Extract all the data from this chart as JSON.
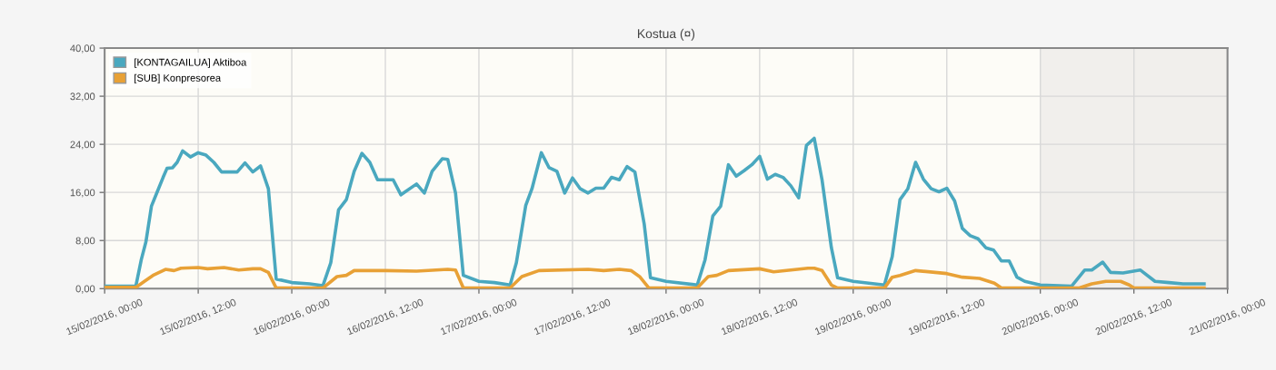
{
  "chart_data": {
    "type": "line",
    "title": "Kostua (¤)",
    "xlim": [
      "2016-02-15T00:00",
      "2016-02-21T00:00"
    ],
    "xticks": [
      {
        "value": "2016-02-15T00:00",
        "label": "15/02/2016, 00:00"
      },
      {
        "value": "2016-02-15T12:00",
        "label": "15/02/2016, 12:00"
      },
      {
        "value": "2016-02-16T00:00",
        "label": "16/02/2016, 00:00"
      },
      {
        "value": "2016-02-16T12:00",
        "label": "16/02/2016, 12:00"
      },
      {
        "value": "2016-02-17T00:00",
        "label": "17/02/2016, 00:00"
      },
      {
        "value": "2016-02-17T12:00",
        "label": "17/02/2016, 12:00"
      },
      {
        "value": "2016-02-18T00:00",
        "label": "18/02/2016, 00:00"
      },
      {
        "value": "2016-02-18T12:00",
        "label": "18/02/2016, 12:00"
      },
      {
        "value": "2016-02-19T00:00",
        "label": "19/02/2016, 00:00"
      },
      {
        "value": "2016-02-19T12:00",
        "label": "19/02/2016, 12:00"
      },
      {
        "value": "2016-02-20T00:00",
        "label": "20/02/2016, 00:00"
      },
      {
        "value": "2016-02-20T12:00",
        "label": "20/02/2016, 12:00"
      },
      {
        "value": "2016-02-21T00:00",
        "label": "21/02/2016, 00:00"
      }
    ],
    "ylim": [
      0,
      40
    ],
    "yticks": [
      {
        "value": 0,
        "label": "0,00"
      },
      {
        "value": 8,
        "label": "8,00"
      },
      {
        "value": 16,
        "label": "16,00"
      },
      {
        "value": 24,
        "label": "24,00"
      },
      {
        "value": 32,
        "label": "32,00"
      },
      {
        "value": 40,
        "label": "40,00"
      }
    ],
    "grid": true,
    "legend": "top left",
    "line_style": "solid",
    "bands": [
      {
        "axis": "x",
        "from": "2016-02-20T00:00",
        "to": "2016-02-21T00:00",
        "color": "#f1efec"
      }
    ],
    "series": [
      {
        "name": "[KONTAGAILUA] Aktiboa",
        "color": "#4aa8bf",
        "x": [
          "2016-02-15T00:00",
          "2016-02-15T04:00",
          "2016-02-15T04:42",
          "2016-02-15T05:18",
          "2016-02-15T06:00",
          "2016-02-15T06:30",
          "2016-02-15T07:30",
          "2016-02-15T08:00",
          "2016-02-15T08:42",
          "2016-02-15T09:18",
          "2016-02-15T10:00",
          "2016-02-15T11:00",
          "2016-02-15T12:00",
          "2016-02-15T13:00",
          "2016-02-15T14:00",
          "2016-02-15T15:00",
          "2016-02-15T17:00",
          "2016-02-15T18:00",
          "2016-02-15T19:00",
          "2016-02-15T20:00",
          "2016-02-15T21:00",
          "2016-02-15T22:00",
          "2016-02-16T00:00",
          "2016-02-16T02:18",
          "2016-02-16T04:00",
          "2016-02-16T05:00",
          "2016-02-16T06:00",
          "2016-02-16T07:00",
          "2016-02-16T08:00",
          "2016-02-16T09:00",
          "2016-02-16T10:00",
          "2016-02-16T11:00",
          "2016-02-16T13:00",
          "2016-02-16T14:00",
          "2016-02-16T16:00",
          "2016-02-16T17:00",
          "2016-02-16T18:00",
          "2016-02-16T19:18",
          "2016-02-16T20:00",
          "2016-02-16T21:00",
          "2016-02-16T22:00",
          "2016-02-17T00:00",
          "2016-02-17T02:00",
          "2016-02-17T04:00",
          "2016-02-17T04:48",
          "2016-02-17T06:00",
          "2016-02-17T06:48",
          "2016-02-17T08:00",
          "2016-02-17T09:00",
          "2016-02-17T10:00",
          "2016-02-17T11:00",
          "2016-02-17T12:00",
          "2016-02-17T13:00",
          "2016-02-17T14:00",
          "2016-02-17T15:00",
          "2016-02-17T16:00",
          "2016-02-17T17:00",
          "2016-02-17T18:00",
          "2016-02-17T19:00",
          "2016-02-17T20:00",
          "2016-02-17T21:12",
          "2016-02-17T22:00",
          "2016-02-18T00:00",
          "2016-02-18T04:00",
          "2016-02-18T05:00",
          "2016-02-18T06:00",
          "2016-02-18T07:00",
          "2016-02-18T08:00",
          "2016-02-18T09:00",
          "2016-02-18T10:00",
          "2016-02-18T11:00",
          "2016-02-18T12:00",
          "2016-02-18T13:00",
          "2016-02-18T14:00",
          "2016-02-18T15:00",
          "2016-02-18T16:00",
          "2016-02-18T17:00",
          "2016-02-18T18:00",
          "2016-02-18T19:00",
          "2016-02-18T20:00",
          "2016-02-18T21:12",
          "2016-02-18T22:00",
          "2016-02-19T00:00",
          "2016-02-19T04:00",
          "2016-02-19T05:00",
          "2016-02-19T06:00",
          "2016-02-19T07:00",
          "2016-02-19T08:00",
          "2016-02-19T09:00",
          "2016-02-19T10:00",
          "2016-02-19T11:00",
          "2016-02-19T12:00",
          "2016-02-19T13:00",
          "2016-02-19T14:00",
          "2016-02-19T15:00",
          "2016-02-19T16:00",
          "2016-02-19T17:00",
          "2016-02-19T18:00",
          "2016-02-19T19:00",
          "2016-02-19T20:00",
          "2016-02-19T21:00",
          "2016-02-19T22:00",
          "2016-02-20T00:00",
          "2016-02-20T04:00",
          "2016-02-20T05:42",
          "2016-02-20T06:36",
          "2016-02-20T08:00",
          "2016-02-20T09:00",
          "2016-02-20T10:36",
          "2016-02-20T12:48",
          "2016-02-20T14:42",
          "2016-02-20T16:30",
          "2016-02-20T18:18",
          "2016-02-20T21:00"
        ],
        "values": [
          0.4,
          0.4,
          4.8,
          7.8,
          13.7,
          15.3,
          18.5,
          20.0,
          20.1,
          21.0,
          22.9,
          21.9,
          22.6,
          22.2,
          21.0,
          19.4,
          19.4,
          20.9,
          19.4,
          20.4,
          16.6,
          1.6,
          1.0,
          0.8,
          0.5,
          4.3,
          13.1,
          14.8,
          19.5,
          22.5,
          21.0,
          18.1,
          18.1,
          15.6,
          17.4,
          15.9,
          19.5,
          21.6,
          21.5,
          15.9,
          2.2,
          1.2,
          1.0,
          0.6,
          4.3,
          13.8,
          16.6,
          22.6,
          20.1,
          19.5,
          15.9,
          18.4,
          16.6,
          15.9,
          16.7,
          16.7,
          18.5,
          18.1,
          20.3,
          19.4,
          10.7,
          1.8,
          1.2,
          0.6,
          4.8,
          12.1,
          13.7,
          20.6,
          18.7,
          19.6,
          20.6,
          22.0,
          18.2,
          19.0,
          18.5,
          17.1,
          15.1,
          23.8,
          25.0,
          18.1,
          6.8,
          1.8,
          1.2,
          0.6,
          5.3,
          14.8,
          16.6,
          21.0,
          18.2,
          16.6,
          16.1,
          16.7,
          14.6,
          10.0,
          8.8,
          8.3,
          6.8,
          6.4,
          4.6,
          4.6,
          1.9,
          1.2,
          0.6,
          0.4,
          3.1,
          3.1,
          4.4,
          2.7,
          2.6,
          3.1,
          1.2,
          1.0,
          0.8,
          0.8
        ]
      },
      {
        "name": "[SUB] Konpresorea",
        "color": "#e8a136",
        "x": [
          "2016-02-15T00:00",
          "2016-02-15T04:00",
          "2016-02-15T05:06",
          "2016-02-15T06:12",
          "2016-02-15T07:48",
          "2016-02-15T08:54",
          "2016-02-15T09:48",
          "2016-02-15T12:00",
          "2016-02-15T13:12",
          "2016-02-15T15:18",
          "2016-02-15T17:12",
          "2016-02-15T19:00",
          "2016-02-15T20:00",
          "2016-02-15T21:00",
          "2016-02-15T22:00",
          "2016-02-16T04:00",
          "2016-02-16T05:48",
          "2016-02-16T07:00",
          "2016-02-16T08:00",
          "2016-02-16T12:00",
          "2016-02-16T16:00",
          "2016-02-16T20:00",
          "2016-02-16T21:00",
          "2016-02-16T22:00",
          "2016-02-17T04:00",
          "2016-02-17T05:30",
          "2016-02-17T07:42",
          "2016-02-17T14:00",
          "2016-02-17T16:00",
          "2016-02-17T18:00",
          "2016-02-17T19:30",
          "2016-02-17T20:36",
          "2016-02-17T21:48",
          "2016-02-18T04:00",
          "2016-02-18T05:24",
          "2016-02-18T06:30",
          "2016-02-18T08:00",
          "2016-02-18T12:00",
          "2016-02-18T13:48",
          "2016-02-18T16:00",
          "2016-02-18T18:12",
          "2016-02-18T19:00",
          "2016-02-18T20:00",
          "2016-02-18T21:12",
          "2016-02-18T22:00",
          "2016-02-19T04:00",
          "2016-02-19T05:00",
          "2016-02-19T06:00",
          "2016-02-19T08:00",
          "2016-02-19T12:00",
          "2016-02-19T14:00",
          "2016-02-19T16:12",
          "2016-02-19T18:06",
          "2016-02-19T19:00",
          "2016-02-20T05:00",
          "2016-02-20T06:36",
          "2016-02-20T08:24",
          "2016-02-20T10:18",
          "2016-02-20T11:24",
          "2016-02-20T12:00",
          "2016-02-20T21:00"
        ],
        "values": [
          0.2,
          0.2,
          1.2,
          2.2,
          3.2,
          3.0,
          3.4,
          3.5,
          3.3,
          3.5,
          3.1,
          3.3,
          3.3,
          2.7,
          0.1,
          0.1,
          2.0,
          2.2,
          3.0,
          3.0,
          2.9,
          3.2,
          3.1,
          0.1,
          0.1,
          2.0,
          3.0,
          3.2,
          3.0,
          3.2,
          3.0,
          2.0,
          0.1,
          0.1,
          2.0,
          2.2,
          3.0,
          3.3,
          2.8,
          3.1,
          3.4,
          3.4,
          3.0,
          0.6,
          0.1,
          0.1,
          1.9,
          2.2,
          3.0,
          2.5,
          1.9,
          1.7,
          0.9,
          0.1,
          0.1,
          0.8,
          1.2,
          1.2,
          0.6,
          0.1,
          0.1
        ]
      }
    ]
  }
}
